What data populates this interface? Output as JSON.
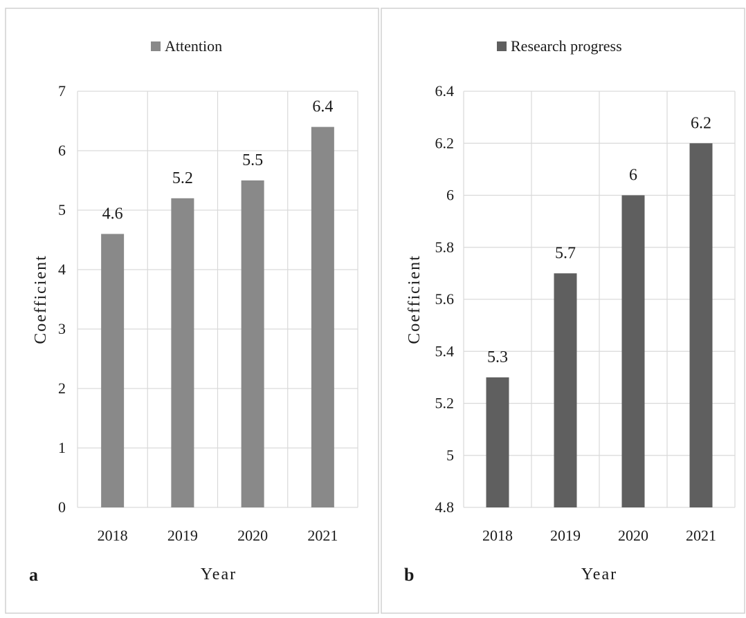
{
  "chart_data": [
    {
      "panel": "a",
      "type": "bar",
      "categories": [
        "2018",
        "2019",
        "2020",
        "2021"
      ],
      "series": [
        {
          "name": "Attention",
          "values": [
            4.6,
            5.2,
            5.5,
            6.4
          ]
        }
      ],
      "data_labels": [
        "4.6",
        "5.2",
        "5.5",
        "6.4"
      ],
      "xlabel": "Year",
      "ylabel": "Coefficient",
      "ylim": [
        0,
        7
      ],
      "yticks": [
        "0",
        "1",
        "2",
        "3",
        "4",
        "5",
        "6",
        "7"
      ],
      "grid": true,
      "legend_position": "top",
      "color": "#898989"
    },
    {
      "panel": "b",
      "type": "bar",
      "categories": [
        "2018",
        "2019",
        "2020",
        "2021"
      ],
      "series": [
        {
          "name": "Research progress",
          "values": [
            5.3,
            5.7,
            6.0,
            6.2
          ]
        }
      ],
      "data_labels": [
        "5.3",
        "5.7",
        "6",
        "6.2"
      ],
      "xlabel": "Year",
      "ylabel": "Coefficient",
      "ylim": [
        4.8,
        6.4
      ],
      "yticks": [
        "4.8",
        "5",
        "5.2",
        "5.4",
        "5.6",
        "5.8",
        "6",
        "6.2",
        "6.4"
      ],
      "grid": true,
      "legend_position": "top",
      "color": "#5f5f5f"
    }
  ]
}
